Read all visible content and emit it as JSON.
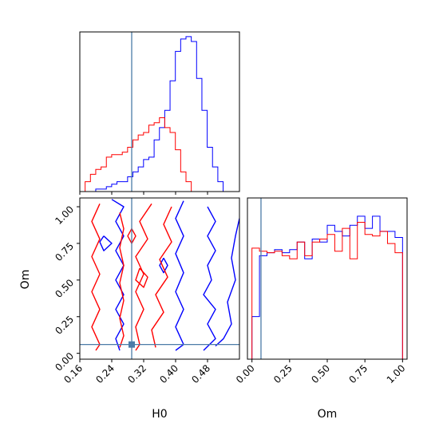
{
  "chart_data": {
    "type": "corner",
    "parameters": [
      "H0",
      "Om"
    ],
    "truth": {
      "H0": 0.29,
      "Om": 0.06
    },
    "colors": {
      "series_a": "#0000ff",
      "series_b": "#ff0000",
      "truth": "#4c7ca8"
    },
    "panels": {
      "h0_hist": {
        "type": "histogram",
        "x_range": [
          0.16,
          0.56
        ],
        "x_ticks": [
          0.16,
          0.24,
          0.32,
          0.4,
          0.48
        ],
        "bin_width": 0.0133,
        "x_start": 0.16,
        "series": [
          {
            "color": "blue",
            "values": [
              0,
              0,
              0,
              1,
              1,
              2,
              3,
              4,
              4,
              6,
              8,
              10,
              13,
              14,
              21,
              26,
              33,
              45,
              57,
              62,
              63,
              61,
              46,
              33,
              18,
              10,
              4,
              0,
              0,
              0
            ]
          },
          {
            "color": "red",
            "values": [
              0,
              4,
              7,
              9,
              10,
              14,
              15,
              15,
              16,
              18,
              21,
              23,
              24,
              27,
              28,
              30,
              26,
              24,
              17,
              8,
              4,
              0,
              0,
              0,
              0,
              0,
              0,
              0,
              0,
              0
            ]
          }
        ]
      },
      "om_hist": {
        "type": "histogram",
        "x_range": [
          -0.03,
          1.03
        ],
        "x_ticks": [
          "0.00",
          "0.25",
          "0.50",
          "0.75",
          "1.00"
        ],
        "bin_width": 0.05,
        "x_start": 0.0,
        "series": [
          {
            "color": "blue",
            "values": [
              0.28,
              0.68,
              0.7,
              0.72,
              0.7,
              0.72,
              0.77,
              0.66,
              0.79,
              0.77,
              0.88,
              0.84,
              0.81,
              0.88,
              0.94,
              0.86,
              0.94,
              0.84,
              0.84,
              0.8
            ]
          },
          {
            "color": "red",
            "values": [
              0.73,
              0.71,
              0.7,
              0.71,
              0.68,
              0.66,
              0.77,
              0.68,
              0.77,
              0.79,
              0.82,
              0.71,
              0.86,
              0.66,
              0.9,
              0.82,
              0.81,
              0.84,
              0.76,
              0.7
            ]
          }
        ]
      },
      "joint": {
        "type": "contour",
        "x_range": [
          0.16,
          0.56
        ],
        "y_range": [
          -0.04,
          1.06
        ],
        "x_ticks": [
          0.16,
          0.24,
          0.32,
          0.4,
          0.48
        ],
        "y_ticks": [
          "0.00",
          "0.25",
          "0.50",
          "0.75",
          "1.00"
        ],
        "xlabel": "H0",
        "ylabel": "Om",
        "series": [
          {
            "color": "blue",
            "contours": [
              [
                [
                  0.24,
                  1.05
                ],
                [
                  0.27,
                  1.0
                ],
                [
                  0.25,
                  0.9
                ],
                [
                  0.27,
                  0.8
                ],
                [
                  0.25,
                  0.7
                ],
                [
                  0.27,
                  0.6
                ],
                [
                  0.25,
                  0.5
                ],
                [
                  0.27,
                  0.4
                ],
                [
                  0.25,
                  0.3
                ],
                [
                  0.27,
                  0.2
                ],
                [
                  0.25,
                  0.1
                ],
                [
                  0.26,
                  0.02
                ]
              ],
              [
                [
                  0.42,
                  1.04
                ],
                [
                  0.4,
                  0.92
                ],
                [
                  0.42,
                  0.8
                ],
                [
                  0.4,
                  0.68
                ],
                [
                  0.42,
                  0.55
                ],
                [
                  0.4,
                  0.42
                ],
                [
                  0.42,
                  0.3
                ],
                [
                  0.4,
                  0.18
                ],
                [
                  0.42,
                  0.06
                ],
                [
                  0.4,
                  0.02
                ]
              ],
              [
                [
                  0.48,
                  1.0
                ],
                [
                  0.5,
                  0.9
                ],
                [
                  0.48,
                  0.8
                ],
                [
                  0.5,
                  0.7
                ],
                [
                  0.48,
                  0.6
                ],
                [
                  0.49,
                  0.5
                ],
                [
                  0.47,
                  0.4
                ],
                [
                  0.5,
                  0.3
                ],
                [
                  0.48,
                  0.2
                ],
                [
                  0.5,
                  0.1
                ],
                [
                  0.47,
                  0.02
                ]
              ],
              [
                [
                  0.56,
                  0.92
                ],
                [
                  0.55,
                  0.8
                ],
                [
                  0.54,
                  0.65
                ],
                [
                  0.55,
                  0.5
                ],
                [
                  0.53,
                  0.35
                ],
                [
                  0.54,
                  0.2
                ],
                [
                  0.52,
                  0.1
                ],
                [
                  0.5,
                  0.05
                ]
              ],
              [
                [
                  0.22,
                  0.8
                ],
                [
                  0.24,
                  0.75
                ],
                [
                  0.22,
                  0.7
                ],
                [
                  0.21,
                  0.76
                ],
                [
                  0.22,
                  0.8
                ]
              ],
              [
                [
                  0.37,
                  0.65
                ],
                [
                  0.38,
                  0.6
                ],
                [
                  0.37,
                  0.55
                ],
                [
                  0.36,
                  0.6
                ],
                [
                  0.37,
                  0.65
                ]
              ]
            ]
          },
          {
            "color": "red",
            "contours": [
              [
                [
                  0.21,
                  1.02
                ],
                [
                  0.19,
                  0.9
                ],
                [
                  0.21,
                  0.78
                ],
                [
                  0.19,
                  0.66
                ],
                [
                  0.21,
                  0.54
                ],
                [
                  0.19,
                  0.42
                ],
                [
                  0.21,
                  0.3
                ],
                [
                  0.19,
                  0.18
                ],
                [
                  0.21,
                  0.06
                ],
                [
                  0.2,
                  0.02
                ]
              ],
              [
                [
                  0.34,
                  1.02
                ],
                [
                  0.31,
                  0.9
                ],
                [
                  0.33,
                  0.78
                ],
                [
                  0.3,
                  0.66
                ],
                [
                  0.32,
                  0.54
                ],
                [
                  0.3,
                  0.42
                ],
                [
                  0.32,
                  0.3
                ],
                [
                  0.3,
                  0.18
                ],
                [
                  0.31,
                  0.06
                ],
                [
                  0.3,
                  0.02
                ]
              ],
              [
                [
                  0.39,
                  1.0
                ],
                [
                  0.37,
                  0.88
                ],
                [
                  0.39,
                  0.76
                ],
                [
                  0.36,
                  0.64
                ],
                [
                  0.38,
                  0.52
                ],
                [
                  0.35,
                  0.4
                ],
                [
                  0.37,
                  0.28
                ],
                [
                  0.34,
                  0.16
                ],
                [
                  0.35,
                  0.04
                ]
              ],
              [
                [
                  0.26,
                  0.96
                ],
                [
                  0.27,
                  0.85
                ],
                [
                  0.26,
                  0.72
                ],
                [
                  0.27,
                  0.6
                ],
                [
                  0.26,
                  0.48
                ],
                [
                  0.27,
                  0.36
                ],
                [
                  0.26,
                  0.24
                ],
                [
                  0.27,
                  0.12
                ],
                [
                  0.26,
                  0.04
                ]
              ],
              [
                [
                  0.31,
                  0.58
                ],
                [
                  0.33,
                  0.52
                ],
                [
                  0.32,
                  0.45
                ],
                [
                  0.3,
                  0.5
                ],
                [
                  0.31,
                  0.58
                ]
              ],
              [
                [
                  0.29,
                  0.85
                ],
                [
                  0.3,
                  0.8
                ],
                [
                  0.29,
                  0.75
                ],
                [
                  0.28,
                  0.8
                ],
                [
                  0.29,
                  0.85
                ]
              ]
            ]
          }
        ]
      }
    },
    "axes": {
      "h0_label": "H0",
      "om_label": "Om"
    }
  }
}
